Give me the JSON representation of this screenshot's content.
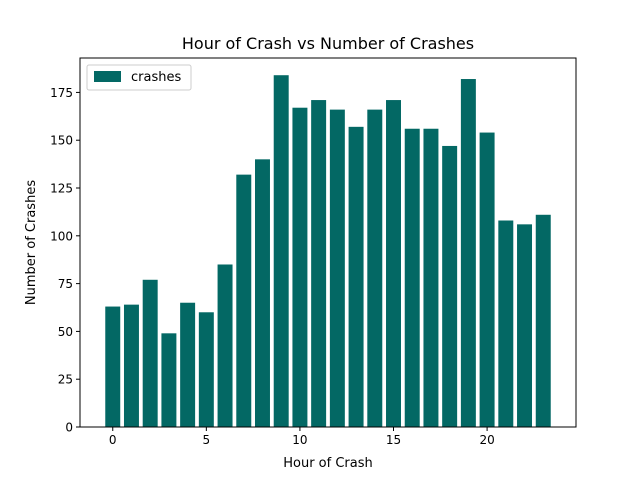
{
  "chart_data": {
    "type": "bar",
    "title": "Hour of Crash vs Number of Crashes",
    "xlabel": "Hour of Crash",
    "ylabel": "Number of Crashes",
    "x": [
      0,
      1,
      2,
      3,
      4,
      5,
      6,
      7,
      8,
      9,
      10,
      11,
      12,
      13,
      14,
      15,
      16,
      17,
      18,
      19,
      20,
      21,
      22,
      23
    ],
    "series": [
      {
        "name": "crashes",
        "color": "#036864",
        "values": [
          63,
          64,
          77,
          49,
          65,
          60,
          85,
          132,
          140,
          184,
          167,
          171,
          166,
          157,
          166,
          171,
          156,
          156,
          147,
          182,
          154,
          108,
          106,
          111
        ]
      }
    ],
    "xlim": [
      -1.75,
      24.75
    ],
    "ylim": [
      0,
      193
    ],
    "xticks": [
      0,
      5,
      10,
      15,
      20
    ],
    "yticks": [
      0,
      25,
      50,
      75,
      100,
      125,
      150,
      175
    ],
    "grid": false,
    "legend_position": "top-left"
  }
}
